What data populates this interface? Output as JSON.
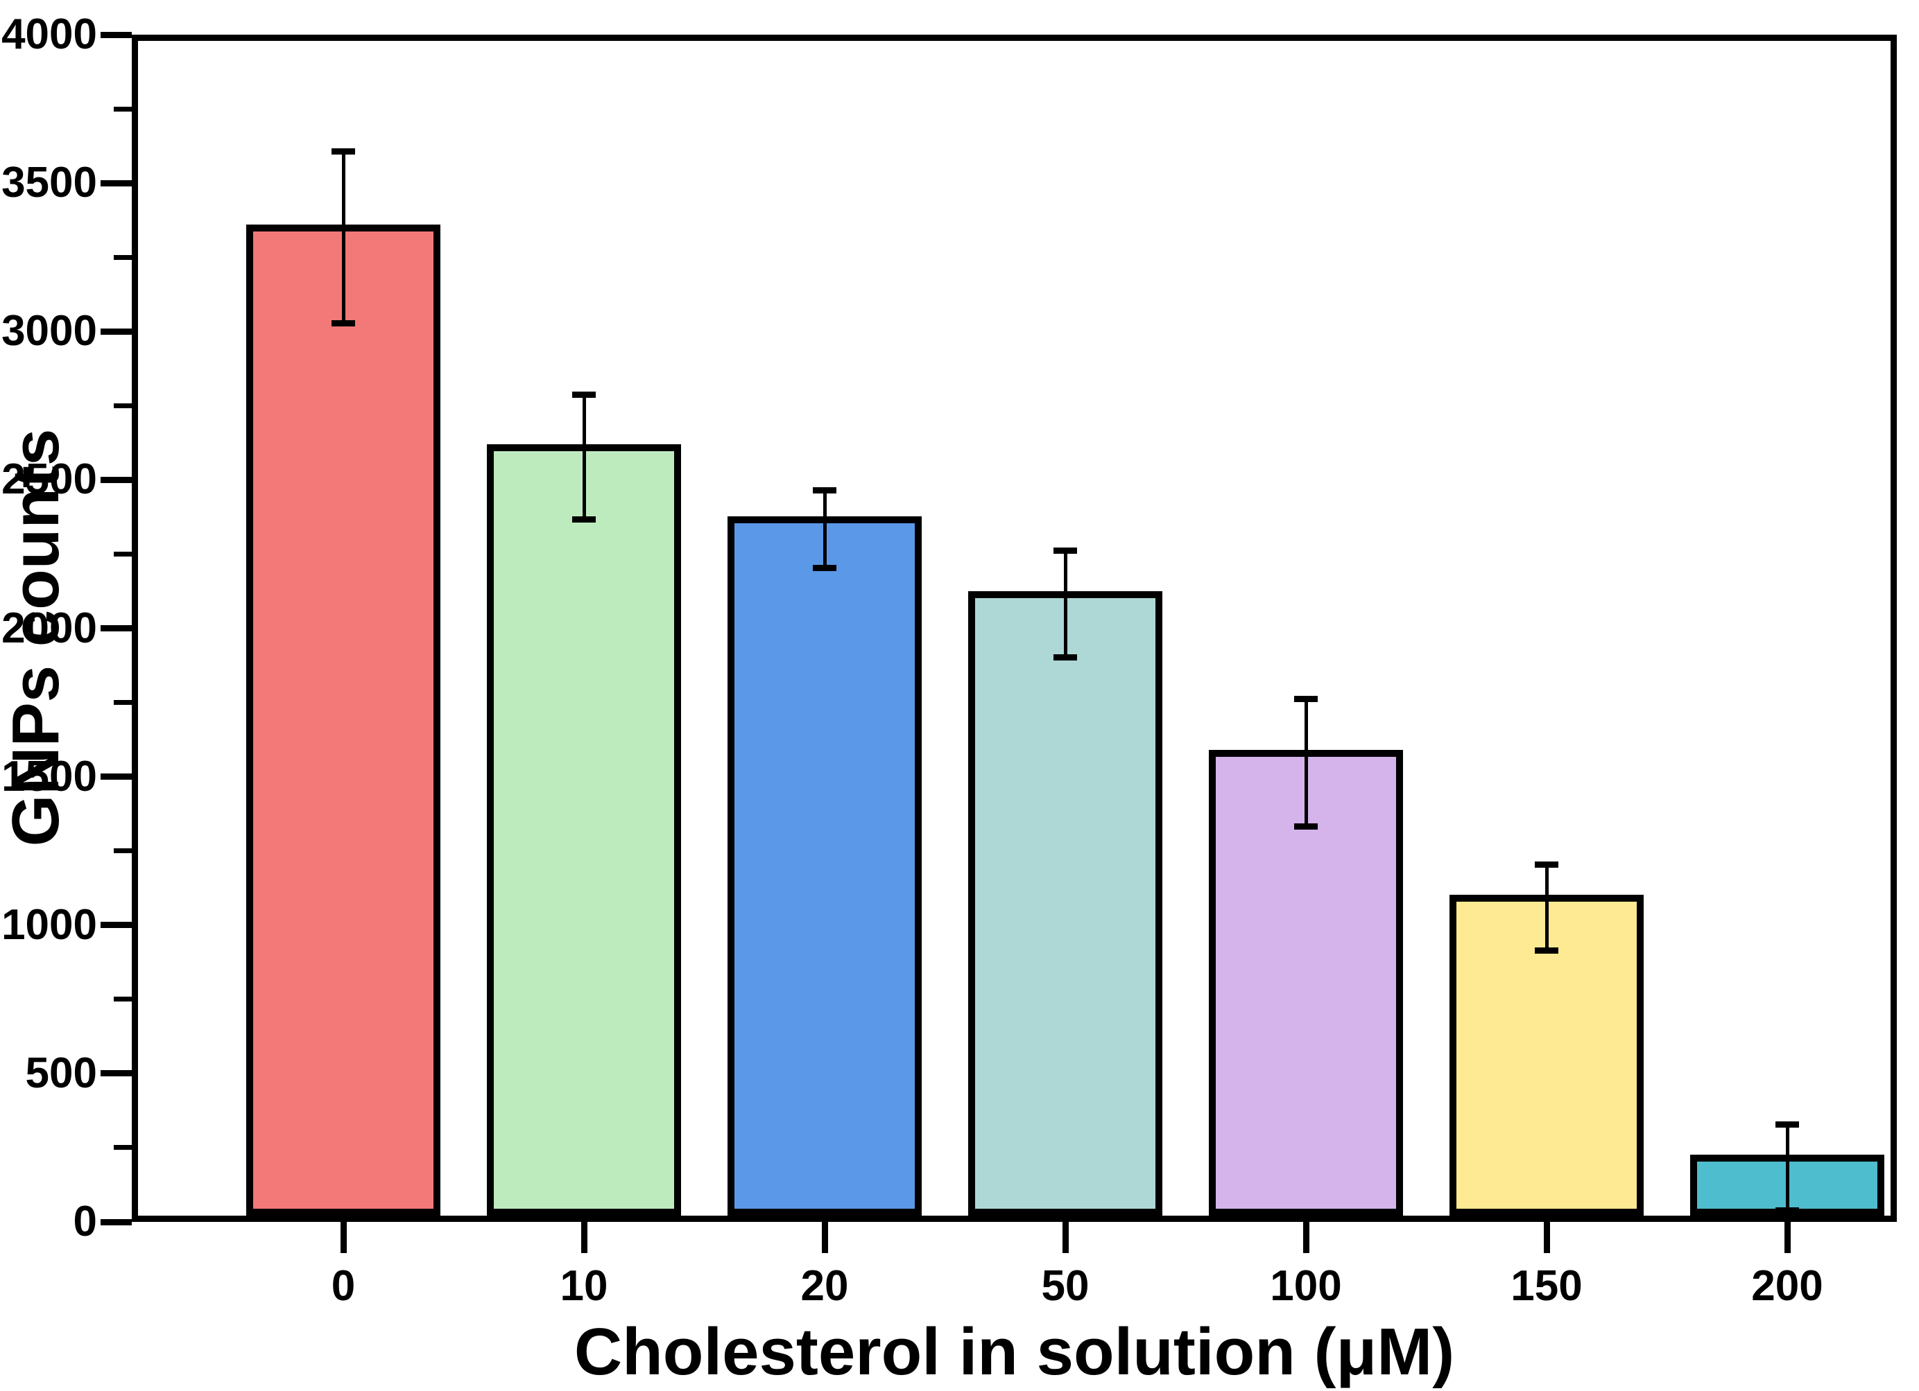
{
  "chart_data": {
    "type": "bar",
    "title": "",
    "xlabel": "Cholesterol in solution (μM)",
    "ylabel": "GNPs counts",
    "categories": [
      "0",
      "10",
      "20",
      "50",
      "100",
      "150",
      "200"
    ],
    "values": [
      3340,
      2600,
      2355,
      2105,
      1570,
      1080,
      205
    ],
    "errors": [
      290,
      210,
      130,
      180,
      215,
      145,
      145
    ],
    "bar_colors": [
      "#F37878",
      "#BEEBBE",
      "#5B99E8",
      "#AED8D6",
      "#D4B4EB",
      "#FFEA94",
      "#4EBDCD"
    ],
    "bar_outline_color": "#000000",
    "error_bar_color": "#000000",
    "ylim": [
      0,
      4000
    ],
    "yticks_major": [
      0,
      500,
      1000,
      1500,
      2000,
      2500,
      3000,
      3500,
      4000
    ],
    "ytick_minor_step": 250,
    "grid": "off",
    "legend": "none",
    "plot_frame": "full-box",
    "background_color": "#ffffff"
  }
}
